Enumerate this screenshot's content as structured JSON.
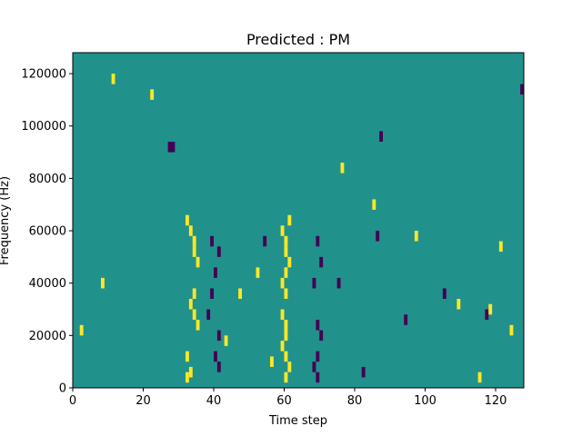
{
  "chart_data": {
    "type": "heatmap",
    "title": "Predicted : PM",
    "xlabel": "Time step",
    "ylabel": "Frequency (Hz)",
    "xlim": [
      0,
      128
    ],
    "ylim": [
      0,
      128000
    ],
    "xticks": [
      0,
      20,
      40,
      60,
      80,
      100,
      120
    ],
    "yticks": [
      0,
      20000,
      40000,
      60000,
      80000,
      100000,
      120000
    ],
    "ytick_labels": [
      "0",
      "20000",
      "40000",
      "60000",
      "80000",
      "100000",
      "120000"
    ],
    "grid": false,
    "legend": "none",
    "colormap": "viridis",
    "colors": {
      "background_class": "#21918c",
      "high_class": "#fde725",
      "low_class": "#440154"
    },
    "cells": [
      {
        "t": 33,
        "f": 64000,
        "class": "high"
      },
      {
        "t": 34,
        "f": 60000,
        "class": "high"
      },
      {
        "t": 35,
        "f": 56000,
        "class": "high"
      },
      {
        "t": 35,
        "f": 52000,
        "class": "high"
      },
      {
        "t": 36,
        "f": 48000,
        "class": "high"
      },
      {
        "t": 35,
        "f": 36000,
        "class": "high"
      },
      {
        "t": 34,
        "f": 32000,
        "class": "high"
      },
      {
        "t": 35,
        "f": 28000,
        "class": "high"
      },
      {
        "t": 36,
        "f": 24000,
        "class": "high"
      },
      {
        "t": 33,
        "f": 12000,
        "class": "high"
      },
      {
        "t": 34,
        "f": 6000,
        "class": "high"
      },
      {
        "t": 33,
        "f": 4000,
        "class": "high"
      },
      {
        "t": 60,
        "f": 60000,
        "class": "high"
      },
      {
        "t": 61,
        "f": 56000,
        "class": "high"
      },
      {
        "t": 61,
        "f": 52000,
        "class": "high"
      },
      {
        "t": 62,
        "f": 48000,
        "class": "high"
      },
      {
        "t": 61,
        "f": 44000,
        "class": "high"
      },
      {
        "t": 60,
        "f": 40000,
        "class": "high"
      },
      {
        "t": 61,
        "f": 36000,
        "class": "high"
      },
      {
        "t": 60,
        "f": 28000,
        "class": "high"
      },
      {
        "t": 61,
        "f": 24000,
        "class": "high"
      },
      {
        "t": 61,
        "f": 20000,
        "class": "high"
      },
      {
        "t": 60,
        "f": 16000,
        "class": "high"
      },
      {
        "t": 61,
        "f": 12000,
        "class": "high"
      },
      {
        "t": 62,
        "f": 8000,
        "class": "high"
      },
      {
        "t": 61,
        "f": 4000,
        "class": "high"
      },
      {
        "t": 62,
        "f": 64000,
        "class": "high"
      },
      {
        "t": 57,
        "f": 10000,
        "class": "high"
      },
      {
        "t": 40,
        "f": 56000,
        "class": "low"
      },
      {
        "t": 42,
        "f": 52000,
        "class": "low"
      },
      {
        "t": 41,
        "f": 44000,
        "class": "low"
      },
      {
        "t": 40,
        "f": 36000,
        "class": "low"
      },
      {
        "t": 39,
        "f": 28000,
        "class": "low"
      },
      {
        "t": 42,
        "f": 20000,
        "class": "low"
      },
      {
        "t": 41,
        "f": 12000,
        "class": "low"
      },
      {
        "t": 42,
        "f": 8000,
        "class": "low"
      },
      {
        "t": 70,
        "f": 56000,
        "class": "low"
      },
      {
        "t": 71,
        "f": 48000,
        "class": "low"
      },
      {
        "t": 69,
        "f": 40000,
        "class": "low"
      },
      {
        "t": 70,
        "f": 24000,
        "class": "low"
      },
      {
        "t": 71,
        "f": 20000,
        "class": "low"
      },
      {
        "t": 70,
        "f": 12000,
        "class": "low"
      },
      {
        "t": 69,
        "f": 8000,
        "class": "low"
      },
      {
        "t": 70,
        "f": 4000,
        "class": "low"
      },
      {
        "t": 28,
        "f": 92000,
        "class": "low"
      },
      {
        "t": 29,
        "f": 92000,
        "class": "low"
      },
      {
        "t": 128,
        "f": 114000,
        "class": "low"
      },
      {
        "t": 95,
        "f": 26000,
        "class": "low"
      },
      {
        "t": 106,
        "f": 36000,
        "class": "low"
      },
      {
        "t": 118,
        "f": 28000,
        "class": "low"
      },
      {
        "t": 83,
        "f": 6000,
        "class": "low"
      },
      {
        "t": 88,
        "f": 96000,
        "class": "low"
      },
      {
        "t": 87,
        "f": 58000,
        "class": "low"
      },
      {
        "t": 76,
        "f": 40000,
        "class": "low"
      },
      {
        "t": 122,
        "f": 54000,
        "class": "high"
      },
      {
        "t": 119,
        "f": 30000,
        "class": "high"
      },
      {
        "t": 125,
        "f": 22000,
        "class": "high"
      },
      {
        "t": 116,
        "f": 4000,
        "class": "high"
      },
      {
        "t": 110,
        "f": 32000,
        "class": "high"
      },
      {
        "t": 98,
        "f": 58000,
        "class": "high"
      },
      {
        "t": 86,
        "f": 70000,
        "class": "high"
      },
      {
        "t": 77,
        "f": 84000,
        "class": "high"
      },
      {
        "t": 44,
        "f": 18000,
        "class": "high"
      },
      {
        "t": 48,
        "f": 36000,
        "class": "high"
      },
      {
        "t": 53,
        "f": 44000,
        "class": "high"
      },
      {
        "t": 9,
        "f": 40000,
        "class": "high"
      },
      {
        "t": 3,
        "f": 22000,
        "class": "high"
      },
      {
        "t": 12,
        "f": 118000,
        "class": "high"
      },
      {
        "t": 23,
        "f": 112000,
        "class": "high"
      },
      {
        "t": 55,
        "f": 56000,
        "class": "low"
      }
    ]
  }
}
